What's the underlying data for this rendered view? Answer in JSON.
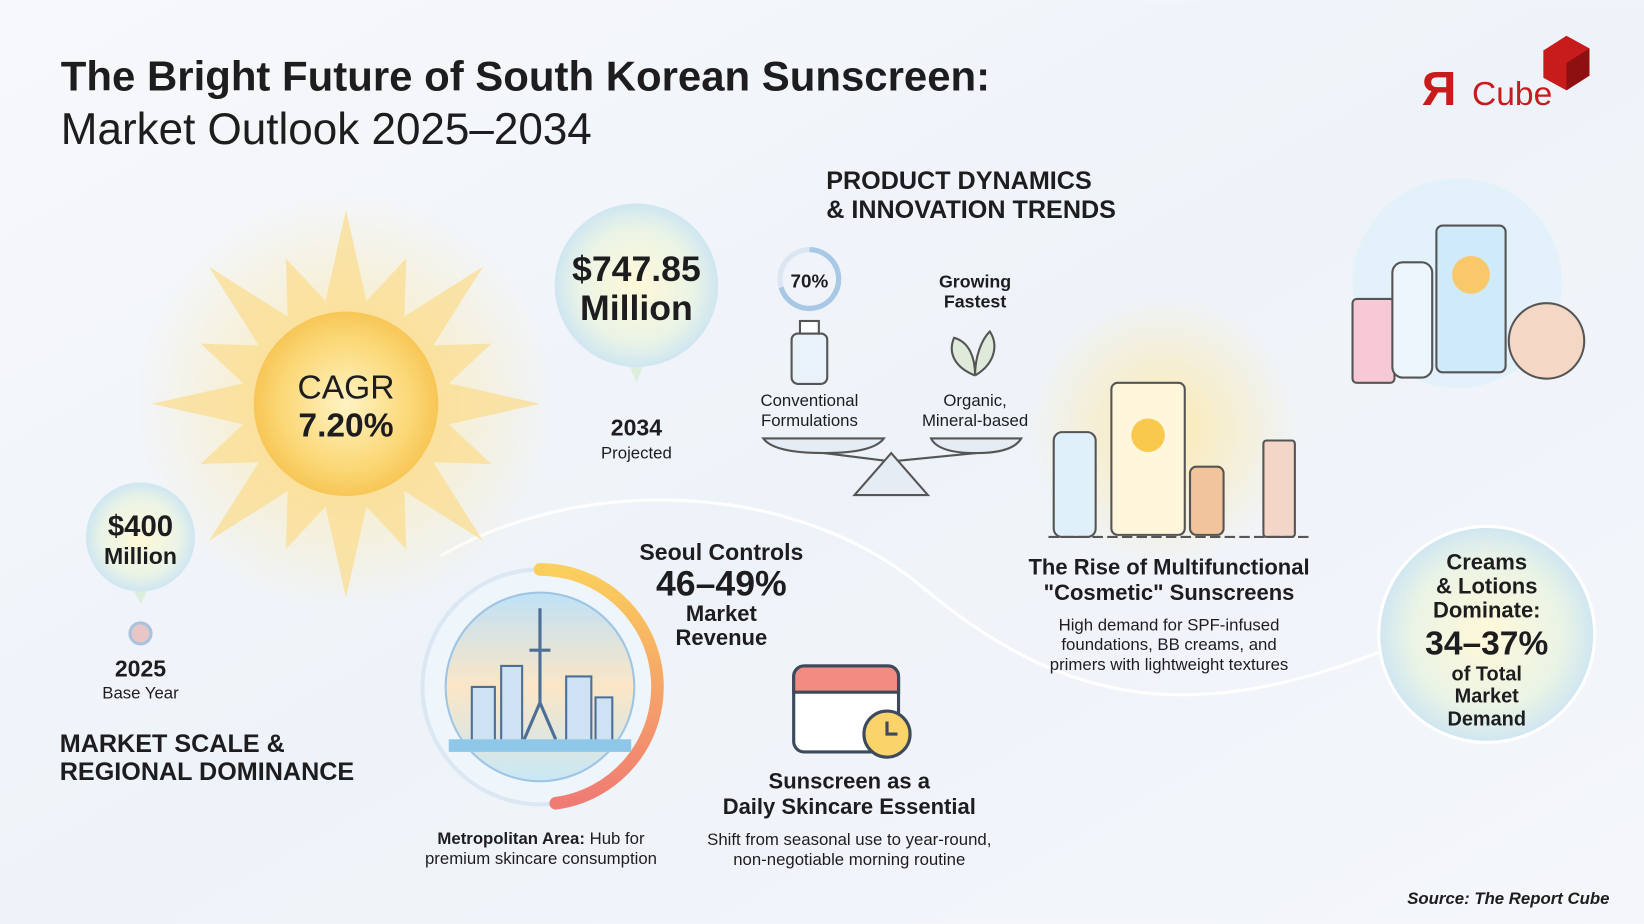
{
  "header": {
    "title": "The Bright Future of South Korean Sunscreen:",
    "subtitle": "Market Outlook 2025–2034"
  },
  "logo": {
    "mark": "Я",
    "text": "Cube"
  },
  "cagr": {
    "label": "CAGR",
    "value": "7.20%"
  },
  "projection": {
    "value": [
      "$747.85",
      "Million"
    ],
    "year": "2034",
    "caption": "Projected"
  },
  "base": {
    "value": [
      "$400",
      "Million"
    ],
    "year": "2025",
    "caption": "Base Year"
  },
  "market_section": {
    "heading": [
      "MARKET SCALE &",
      "REGIONAL DOMINANCE"
    ]
  },
  "product_section": {
    "heading": [
      "PRODUCT DYNAMICS",
      "& INNOVATION TRENDS"
    ]
  },
  "balance": {
    "left": {
      "share": "70%",
      "label": [
        "Conventional",
        "Formulations"
      ]
    },
    "right": {
      "badge": [
        "Growing",
        "Fastest"
      ],
      "label": [
        "Organic,",
        "Mineral-based"
      ]
    }
  },
  "seoul": {
    "heading": "Seoul Controls",
    "value": "46–49%",
    "label": [
      "Market",
      "Revenue"
    ],
    "caption": {
      "bold": "Metropolitan Area:",
      "text": "Hub for",
      "line2": "premium skincare consumption"
    }
  },
  "daily": {
    "title": [
      "Sunscreen as a",
      "Daily Skincare Essential"
    ],
    "caption": [
      "Shift from seasonal use to year-round,",
      "non-negotiable morning routine"
    ]
  },
  "multifunctional": {
    "title": [
      "The Rise of Multifunctional",
      "\"Cosmetic\" Sunscreens"
    ],
    "caption": [
      "High demand for SPF-infused",
      "foundations, BB creams, and",
      "primers with lightweight textures"
    ]
  },
  "creams": {
    "lines": [
      "Creams",
      "& Lotions",
      "Dominate:"
    ],
    "value": "34–37%",
    "caption": [
      "of Total",
      "Market",
      "Demand"
    ]
  },
  "source": "Source: The Report Cube"
}
